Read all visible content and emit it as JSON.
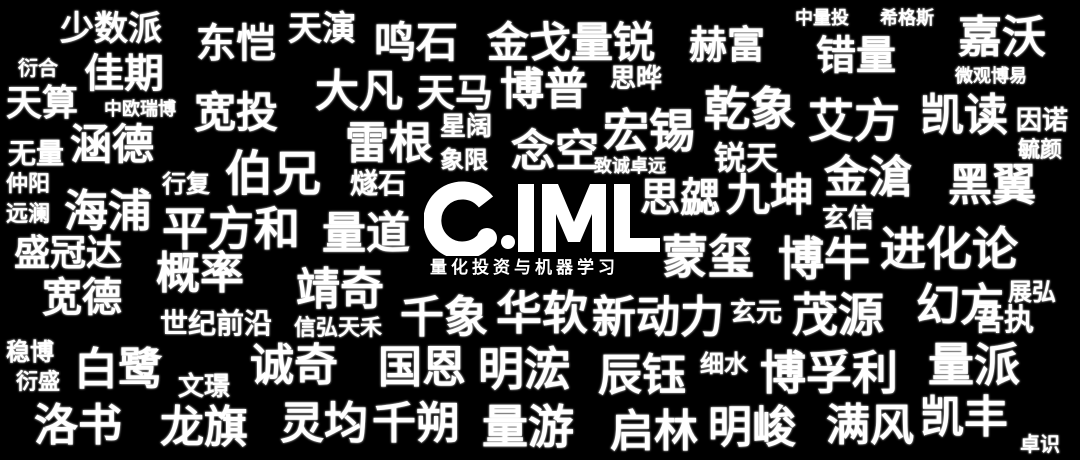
{
  "colors": {
    "background": "#000000",
    "text": "#ffffff"
  },
  "logo": {
    "text": "QIML",
    "subtitle": "量化投资与机器学习"
  },
  "words": [
    "少数派",
    "东恺",
    "天演",
    "鸣石",
    "金戈量锐",
    "赫富",
    "中量投",
    "希格斯",
    "嘉沃",
    "衍合",
    "佳期",
    "错量",
    "天算",
    "大凡",
    "天马",
    "博普",
    "思晔",
    "微观博易",
    "中欧瑞博",
    "宽投",
    "乾象",
    "艾方",
    "凯读",
    "因诺",
    "星阔",
    "无量",
    "涵德",
    "雷根",
    "宏锡",
    "毓颜",
    "念空",
    "象限",
    "致诚卓远",
    "锐天",
    "伯兄",
    "行复",
    "仲阳",
    "燧石",
    "金滄",
    "黑翼",
    "思勰",
    "九坤",
    "远澜",
    "海浦",
    "玄信",
    "平方和",
    "量道",
    "盛冠达",
    "蒙玺",
    "博牛",
    "进化论",
    "概率",
    "宽德",
    "靖奇",
    "展弘",
    "幻方",
    "世纪前沿",
    "千象",
    "华软",
    "新动力",
    "信弘天禾",
    "玄元",
    "茂源",
    "吾执",
    "稳博",
    "白鹭",
    "诚奇",
    "国恩",
    "明浤",
    "细水",
    "辰钰",
    "博孚利",
    "量派",
    "衍盛",
    "文璟",
    "洛书",
    "龙旗",
    "灵均",
    "千朔",
    "量游",
    "启林",
    "明峻",
    "满风",
    "凯丰",
    "卓识"
  ]
}
